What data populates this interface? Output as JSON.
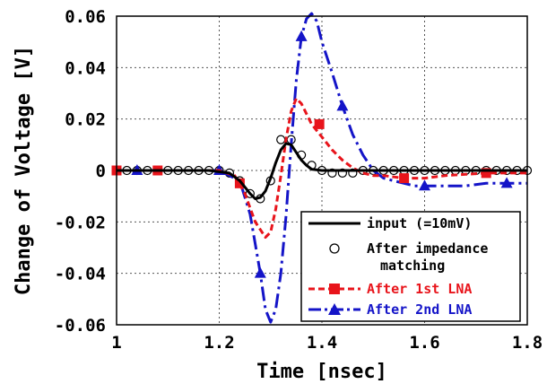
{
  "chart_data": {
    "type": "line",
    "title": "",
    "xlabel": "Time [nsec]",
    "ylabel": "Change of Voltage [V]",
    "xlim": [
      1.0,
      1.8
    ],
    "ylim": [
      -0.06,
      0.06
    ],
    "x_ticks": [
      1.0,
      1.2,
      1.4,
      1.6,
      1.8
    ],
    "x_tick_labels": [
      "1",
      "1.2",
      "1.4",
      "1.6",
      "1.8"
    ],
    "y_ticks": [
      -0.06,
      -0.04,
      -0.02,
      0.0,
      0.02,
      0.04,
      0.06
    ],
    "y_tick_labels": [
      "-0.06",
      "-0.04",
      "-0.02",
      "0",
      "0.02",
      "0.04",
      "0.06"
    ],
    "grid": true,
    "legend_position": "bottom-right",
    "series": [
      {
        "name": "input (=10mV)",
        "color": "#000000",
        "style": "solid-line",
        "x": [
          1.0,
          1.18,
          1.22,
          1.24,
          1.26,
          1.27,
          1.28,
          1.29,
          1.3,
          1.31,
          1.32,
          1.33,
          1.34,
          1.35,
          1.36,
          1.37,
          1.38,
          1.4,
          1.44,
          1.5,
          1.8
        ],
        "y": [
          0.0,
          0.0,
          -0.001,
          -0.004,
          -0.009,
          -0.011,
          -0.0105,
          -0.008,
          -0.003,
          0.003,
          0.008,
          0.0105,
          0.01,
          0.007,
          0.004,
          0.002,
          0.0005,
          0.0,
          0.0,
          0.0,
          0.0
        ]
      },
      {
        "name": "After impedance matching",
        "color": "#000000",
        "style": "open-circles",
        "x": [
          1.0,
          1.02,
          1.04,
          1.06,
          1.08,
          1.1,
          1.12,
          1.14,
          1.16,
          1.18,
          1.2,
          1.22,
          1.24,
          1.26,
          1.28,
          1.3,
          1.32,
          1.34,
          1.36,
          1.38,
          1.4,
          1.42,
          1.44,
          1.46,
          1.48,
          1.5,
          1.52,
          1.54,
          1.56,
          1.58,
          1.6,
          1.62,
          1.64,
          1.66,
          1.68,
          1.7,
          1.72,
          1.74,
          1.76,
          1.78,
          1.8
        ],
        "y": [
          0.0,
          0.0,
          0.0,
          0.0,
          0.0,
          0.0,
          0.0,
          0.0,
          0.0,
          0.0,
          0.0,
          -0.001,
          -0.004,
          -0.009,
          -0.011,
          -0.004,
          0.012,
          0.012,
          0.006,
          0.002,
          0.0,
          -0.001,
          -0.001,
          -0.001,
          0.0,
          0.0,
          0.0,
          0.0,
          0.0,
          0.0,
          0.0,
          0.0,
          0.0,
          0.0,
          0.0,
          0.0,
          0.0,
          0.0,
          0.0,
          0.0,
          0.0
        ]
      },
      {
        "name": "After 1st LNA",
        "color": "#e8141b",
        "style": "dashed-line-squares",
        "x": [
          1.0,
          1.2,
          1.23,
          1.25,
          1.27,
          1.29,
          1.3,
          1.31,
          1.32,
          1.33,
          1.34,
          1.35,
          1.36,
          1.37,
          1.38,
          1.4,
          1.42,
          1.44,
          1.46,
          1.48,
          1.5,
          1.52,
          1.54,
          1.56,
          1.6,
          1.64,
          1.68,
          1.72,
          1.76,
          1.8
        ],
        "y": [
          0.0,
          0.0,
          -0.002,
          -0.009,
          -0.02,
          -0.026,
          -0.024,
          -0.015,
          -0.002,
          0.012,
          0.023,
          0.028,
          0.026,
          0.022,
          0.018,
          0.013,
          0.008,
          0.004,
          0.001,
          -0.001,
          -0.002,
          -0.002,
          -0.0025,
          -0.003,
          -0.003,
          -0.002,
          -0.0015,
          -0.001,
          -0.001,
          -0.001
        ],
        "markers": [
          [
            1.0,
            0.0
          ],
          [
            1.08,
            0.0
          ],
          [
            1.24,
            -0.005
          ],
          [
            1.395,
            0.018
          ],
          [
            1.56,
            -0.003
          ],
          [
            1.72,
            -0.001
          ]
        ]
      },
      {
        "name": "After 2nd LNA",
        "color": "#1414c8",
        "style": "dash-dot-line-triangles",
        "x": [
          1.0,
          1.2,
          1.24,
          1.26,
          1.28,
          1.29,
          1.3,
          1.31,
          1.32,
          1.33,
          1.34,
          1.35,
          1.36,
          1.37,
          1.38,
          1.39,
          1.4,
          1.42,
          1.44,
          1.46,
          1.48,
          1.5,
          1.52,
          1.54,
          1.56,
          1.58,
          1.6,
          1.64,
          1.68,
          1.72,
          1.76,
          1.8
        ],
        "y": [
          0.0,
          0.0,
          -0.004,
          -0.017,
          -0.04,
          -0.054,
          -0.059,
          -0.054,
          -0.04,
          -0.018,
          0.01,
          0.035,
          0.052,
          0.059,
          0.061,
          0.058,
          0.05,
          0.038,
          0.025,
          0.014,
          0.006,
          0.0,
          -0.003,
          -0.004,
          -0.005,
          -0.006,
          -0.006,
          -0.006,
          -0.006,
          -0.005,
          -0.005,
          -0.005
        ],
        "markers": [
          [
            1.04,
            0.0
          ],
          [
            1.2,
            0.0
          ],
          [
            1.28,
            -0.04
          ],
          [
            1.36,
            0.052
          ],
          [
            1.44,
            0.025
          ],
          [
            1.6,
            -0.006
          ],
          [
            1.76,
            -0.005
          ]
        ]
      }
    ],
    "legend": {
      "labels": [
        "input (=10mV)",
        "After impedance",
        "matching",
        "After 1st LNA",
        "After 2nd LNA"
      ]
    }
  }
}
